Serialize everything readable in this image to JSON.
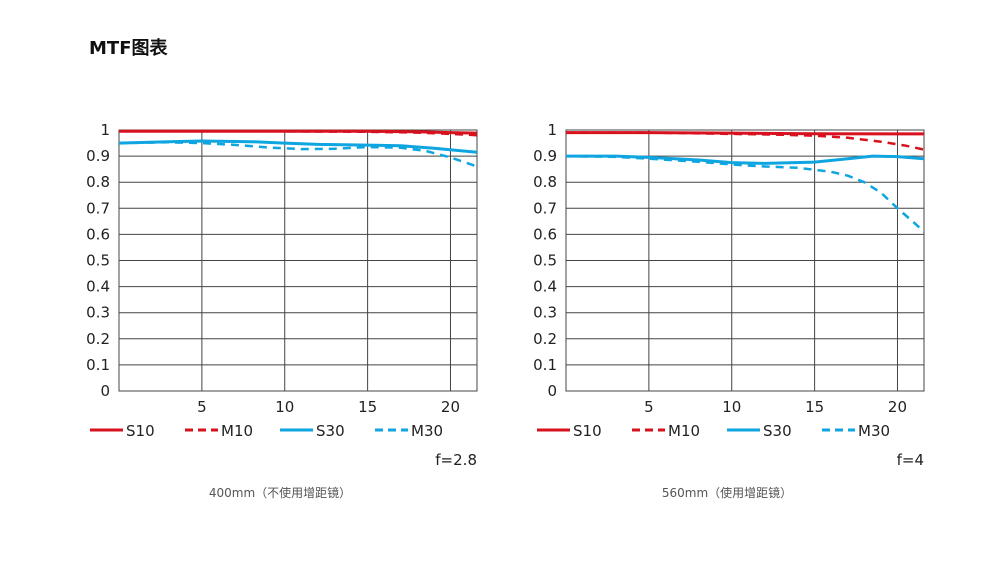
{
  "page": {
    "title": "MTF图表"
  },
  "colors": {
    "red": "#d7111e",
    "blue": "#0ea5e0",
    "grid": "#444444",
    "text": "#222222"
  },
  "legend": [
    {
      "label": "S10",
      "color": "#d7111e",
      "dashed": false
    },
    {
      "label": "M10",
      "color": "#d7111e",
      "dashed": true
    },
    {
      "label": "S30",
      "color": "#0ea5e0",
      "dashed": false
    },
    {
      "label": "M30",
      "color": "#0ea5e0",
      "dashed": true
    }
  ],
  "chart_data": [
    {
      "type": "line",
      "title": "",
      "xlim": [
        0,
        21.6
      ],
      "ylim": [
        0,
        1
      ],
      "x_ticks": [
        5,
        10,
        15,
        20
      ],
      "y_ticks": [
        0,
        0.1,
        0.2,
        0.3,
        0.4,
        0.5,
        0.6,
        0.7,
        0.8,
        0.9,
        1
      ],
      "y_tick_labels": [
        "0",
        "0.1",
        "0.2",
        "0.3",
        "0.4",
        "0.5",
        "0.6",
        "0.7",
        "0.8",
        "0.9",
        "1"
      ],
      "grid": true,
      "f_number": "f=2.8",
      "caption": "400mm（不使用增距镜）",
      "series": [
        {
          "name": "S10",
          "color": "#d7111e",
          "dashed": false,
          "x": [
            0,
            5,
            10,
            15,
            18,
            20,
            21.6
          ],
          "y": [
            0.995,
            0.995,
            0.995,
            0.995,
            0.993,
            0.99,
            0.988
          ]
        },
        {
          "name": "M10",
          "color": "#d7111e",
          "dashed": true,
          "x": [
            0,
            5,
            10,
            15,
            18,
            20,
            21.6
          ],
          "y": [
            0.995,
            0.995,
            0.995,
            0.993,
            0.99,
            0.985,
            0.98
          ]
        },
        {
          "name": "S30",
          "color": "#0ea5e0",
          "dashed": false,
          "x": [
            0,
            3,
            5,
            8,
            10,
            12,
            15,
            17,
            19,
            21.6
          ],
          "y": [
            0.95,
            0.955,
            0.958,
            0.955,
            0.95,
            0.945,
            0.942,
            0.94,
            0.93,
            0.915
          ]
        },
        {
          "name": "M30",
          "color": "#0ea5e0",
          "dashed": true,
          "x": [
            0,
            3,
            5,
            7,
            9,
            11,
            13,
            15,
            17,
            18.5,
            20,
            21.6
          ],
          "y": [
            0.95,
            0.953,
            0.95,
            0.943,
            0.933,
            0.927,
            0.928,
            0.935,
            0.932,
            0.92,
            0.895,
            0.86
          ]
        }
      ]
    },
    {
      "type": "line",
      "title": "",
      "xlim": [
        0,
        21.6
      ],
      "ylim": [
        0,
        1
      ],
      "x_ticks": [
        5,
        10,
        15,
        20
      ],
      "y_ticks": [
        0,
        0.1,
        0.2,
        0.3,
        0.4,
        0.5,
        0.6,
        0.7,
        0.8,
        0.9,
        1
      ],
      "y_tick_labels": [
        "0",
        "0.1",
        "0.2",
        "0.3",
        "0.4",
        "0.5",
        "0.6",
        "0.7",
        "0.8",
        "0.9",
        "1"
      ],
      "grid": true,
      "f_number": "f=4",
      "caption": "560mm（使用增距镜）",
      "series": [
        {
          "name": "S10",
          "color": "#d7111e",
          "dashed": false,
          "x": [
            0,
            5,
            10,
            15,
            20,
            21.6
          ],
          "y": [
            0.99,
            0.99,
            0.988,
            0.986,
            0.985,
            0.985
          ]
        },
        {
          "name": "M10",
          "color": "#d7111e",
          "dashed": true,
          "x": [
            0,
            5,
            10,
            13,
            15,
            17,
            19,
            20.5,
            21.6
          ],
          "y": [
            0.99,
            0.99,
            0.985,
            0.982,
            0.978,
            0.97,
            0.955,
            0.94,
            0.925
          ]
        },
        {
          "name": "S30",
          "color": "#0ea5e0",
          "dashed": false,
          "x": [
            0,
            3,
            5,
            8,
            10,
            12,
            15,
            17,
            18.5,
            20,
            21.6
          ],
          "y": [
            0.9,
            0.9,
            0.895,
            0.885,
            0.875,
            0.872,
            0.877,
            0.89,
            0.9,
            0.898,
            0.89
          ]
        },
        {
          "name": "M30",
          "color": "#0ea5e0",
          "dashed": true,
          "x": [
            0,
            3,
            5,
            8,
            10,
            12,
            14,
            16,
            17,
            18,
            19,
            20,
            21,
            21.6
          ],
          "y": [
            0.9,
            0.897,
            0.89,
            0.878,
            0.868,
            0.86,
            0.855,
            0.84,
            0.825,
            0.8,
            0.76,
            0.7,
            0.645,
            0.61
          ]
        }
      ]
    }
  ]
}
